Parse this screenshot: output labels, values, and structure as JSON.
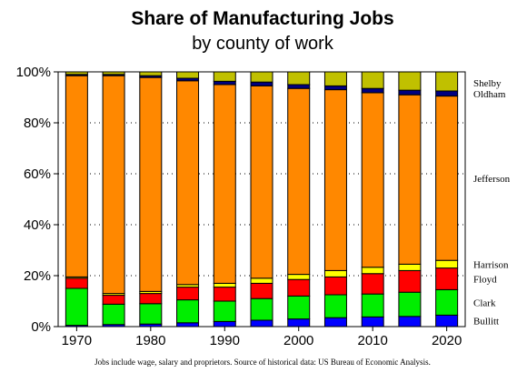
{
  "chart_data": {
    "type": "bar",
    "stacked": true,
    "title": "Share of Manufacturing Jobs",
    "subtitle": "by county of work",
    "footnote": "Jobs include wage, salary and proprietors. Source of historical data: US Bureau of Economic Analysis.",
    "categories": [
      1970,
      1975,
      1980,
      1985,
      1990,
      1995,
      2000,
      2005,
      2010,
      2015,
      2020
    ],
    "x_ticks": [
      "1970",
      "1980",
      "1990",
      "2000",
      "2010",
      "2020"
    ],
    "y_ticks": [
      "0%",
      "20%",
      "40%",
      "60%",
      "80%",
      "100%"
    ],
    "ylim": [
      0,
      100
    ],
    "grid": true,
    "legend_position": "right",
    "series": [
      {
        "name": "Bullitt",
        "color": "#0000ff",
        "values": [
          0.5,
          0.8,
          1.0,
          1.5,
          2.0,
          2.5,
          3.0,
          3.5,
          3.8,
          4.0,
          4.5
        ]
      },
      {
        "name": "Clark",
        "color": "#00ee00",
        "values": [
          14.5,
          8.0,
          8.0,
          9.0,
          8.0,
          8.5,
          9.0,
          9.0,
          9.0,
          9.5,
          10.0
        ]
      },
      {
        "name": "Floyd",
        "color": "#ff0000",
        "values": [
          4.0,
          3.5,
          4.0,
          5.0,
          5.5,
          6.0,
          6.5,
          7.0,
          8.0,
          8.5,
          8.5
        ]
      },
      {
        "name": "Harrison",
        "color": "#ffff00",
        "values": [
          0.5,
          0.7,
          0.8,
          1.0,
          1.5,
          2.0,
          2.0,
          2.5,
          2.5,
          2.5,
          3.0
        ]
      },
      {
        "name": "Jefferson",
        "color": "#ff8800",
        "values": [
          79.0,
          85.5,
          84.0,
          80.0,
          78.0,
          75.5,
          73.0,
          71.0,
          68.5,
          66.5,
          64.5
        ]
      },
      {
        "name": "Oldham",
        "color": "#000080",
        "values": [
          0.5,
          0.5,
          0.7,
          1.0,
          1.3,
          1.5,
          1.5,
          1.5,
          1.7,
          1.8,
          2.0
        ]
      },
      {
        "name": "Shelby",
        "color": "#c0c000",
        "values": [
          1.0,
          1.0,
          1.5,
          2.5,
          3.7,
          4.0,
          5.0,
          5.5,
          6.5,
          7.2,
          7.5
        ]
      }
    ]
  }
}
